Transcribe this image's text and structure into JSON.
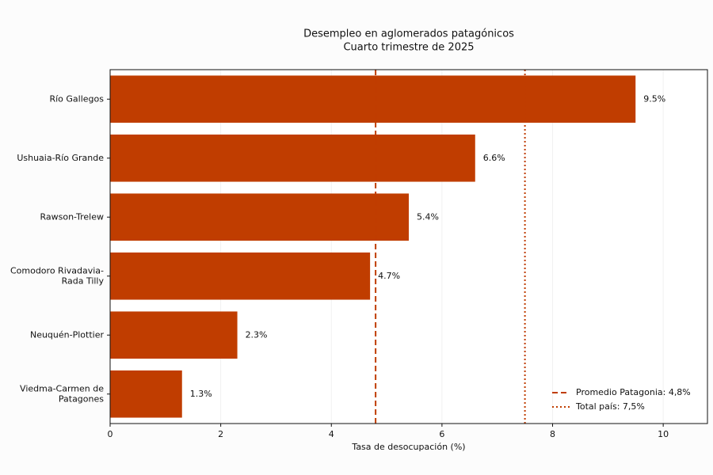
{
  "chart_data": {
    "type": "barh",
    "title": "Desempleo en aglomerados patagónicos",
    "subtitle": "Cuarto trimestre de 2025",
    "xlabel": "Tasa de desocupación (%)",
    "categories": [
      "Río Gallegos",
      "Ushuaia-Río Grande",
      "Rawson-Trelew",
      "Comodoro Rivadavia-\nRada Tilly",
      "Neuquén-Plottier",
      "Viedma-Carmen de\nPatagones"
    ],
    "values": [
      9.5,
      6.6,
      5.4,
      4.7,
      2.3,
      1.3
    ],
    "value_labels": [
      "9.5%",
      "6.6%",
      "5.4%",
      "4.7%",
      "2.3%",
      "1.3%"
    ],
    "color": "#c03d00",
    "xlim": [
      0,
      10.8
    ],
    "xticks": [
      0,
      2,
      4,
      6,
      8,
      10
    ],
    "grid": true,
    "reference_lines": [
      {
        "name": "Promedio Patagonia: 4,8%",
        "value": 4.8,
        "style": "dashed",
        "color": "#c03d00"
      },
      {
        "name": "Total país: 7,5%",
        "value": 7.5,
        "style": "dotted",
        "color": "#c03d00"
      }
    ],
    "legend": "lower right"
  }
}
